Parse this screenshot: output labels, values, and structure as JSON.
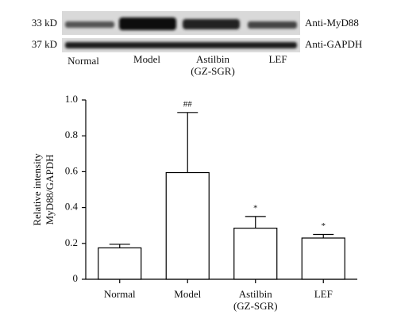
{
  "blot": {
    "markers": [
      "33 kD",
      "37 kD"
    ],
    "antibodies": [
      "Anti-MyD88",
      "Anti-GAPDH"
    ],
    "lanes": [
      "Normal",
      "Model",
      "Astilbin (GZ-SGR)",
      "LEF"
    ]
  },
  "chart_data": {
    "type": "bar",
    "ylabel": [
      "Relative intensity",
      "MyD88/GAPDH"
    ],
    "categories": [
      "Normal",
      "Model",
      "Astilbin (GZ-SGR)",
      "LEF"
    ],
    "values": [
      0.175,
      0.595,
      0.285,
      0.23
    ],
    "errors": [
      0.02,
      0.335,
      0.065,
      0.02
    ],
    "annotations": [
      null,
      "##",
      "*",
      "*"
    ],
    "color": "#ffffff",
    "ylim": [
      0,
      1
    ],
    "yticks": [
      0,
      0.2,
      0.4,
      0.6,
      0.8,
      {
        "value": 1,
        "label": "1.0"
      }
    ]
  }
}
